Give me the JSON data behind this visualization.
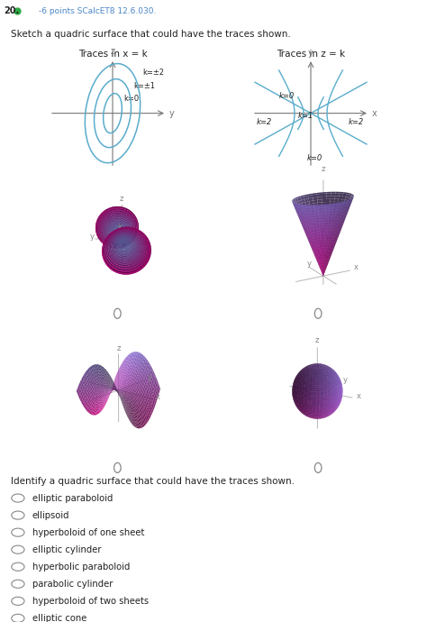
{
  "title_number": "20.",
  "points_text": "-6 points SCalcET8 12.6.030.",
  "question_text": "Sketch a quadric surface that could have the traces shown.",
  "traces_x_title": "Traces in x = k",
  "traces_z_title": "Traces in z = k",
  "radio_options": [
    "elliptic paraboloid",
    "ellipsoid",
    "hyperboloid of one sheet",
    "elliptic cylinder",
    "hyperbolic paraboloid",
    "parabolic cylinder",
    "hyperboloid of two sheets",
    "elliptic cone"
  ],
  "identify_text": "Identify a quadric surface that could have the traces shown.",
  "header_color": "#4a86c8",
  "header_bg": "#dce9f7",
  "curve_color": "#5aaccc",
  "axis_color": "#777777",
  "text_color": "#222222",
  "dot_color": "#2eaa44"
}
